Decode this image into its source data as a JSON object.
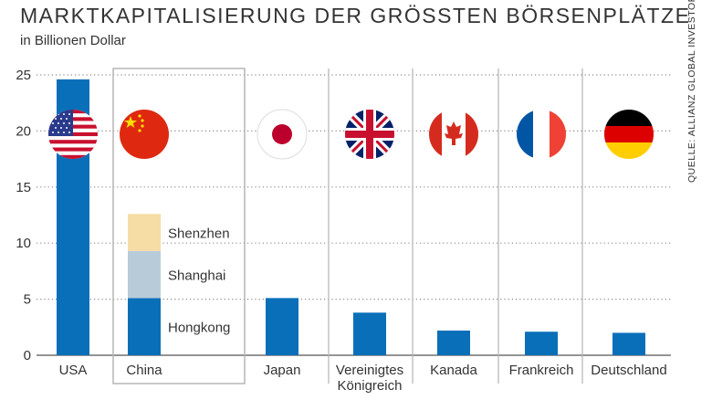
{
  "chart_data": {
    "type": "bar",
    "title": "MARKTKAPITALISIERUNG DER GRÖSSTEN BÖRSENPLÄTZE",
    "subtitle": "in Billionen Dollar",
    "source": "QUELLE: ALLIANZ GLOBAL INVESTORS",
    "ylim": [
      0,
      25
    ],
    "yticks": [
      0,
      5,
      10,
      15,
      20,
      25
    ],
    "grid": "horizontal dotted",
    "categories": [
      {
        "label": [
          "USA"
        ],
        "flag": "usa-flag",
        "value": 24.6
      },
      {
        "label": [
          "China"
        ],
        "flag": "china-flag",
        "highlighted": true,
        "stack": [
          {
            "name": "Hongkong",
            "value": 5.1,
            "color": "#0a6fb9"
          },
          {
            "name": "Shanghai",
            "value": 4.2,
            "color": "#b7ccd8"
          },
          {
            "name": "Shenzhen",
            "value": 3.3,
            "color": "#f6dca5"
          }
        ]
      },
      {
        "label": [
          "Japan"
        ],
        "flag": "japan-flag",
        "value": 5.1
      },
      {
        "label": [
          "Vereinigtes",
          "Königreich"
        ],
        "flag": "uk-flag",
        "value": 3.8
      },
      {
        "label": [
          "Kanada"
        ],
        "flag": "canada-flag",
        "value": 2.2
      },
      {
        "label": [
          "Frankreich"
        ],
        "flag": "france-flag",
        "value": 2.1
      },
      {
        "label": [
          "Deutschland"
        ],
        "flag": "germany-flag",
        "value": 2.0
      }
    ]
  },
  "colors": {
    "bar": "#0a6fb9",
    "grid": "#8a8a8a",
    "text": "#333333",
    "box": "#b5b5b5"
  }
}
